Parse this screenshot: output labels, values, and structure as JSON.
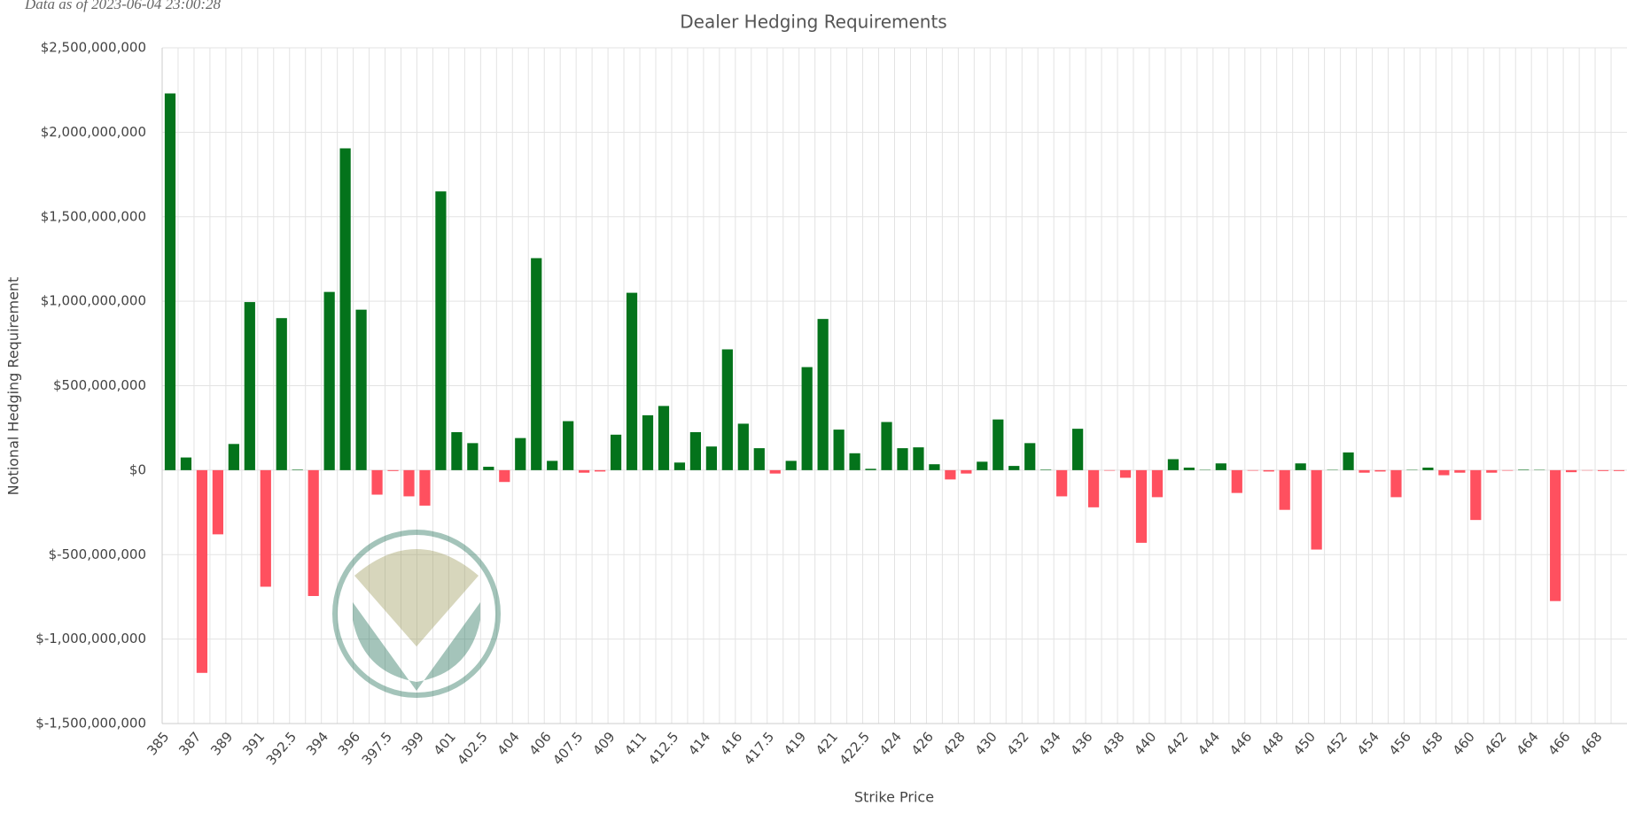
{
  "chart_data": {
    "type": "bar",
    "title": "Dealer Hedging Requirements",
    "annotation": "Data as of 2023-06-04 23:00:28",
    "x_label": "Strike Price",
    "y_label": "Notional Hedging Requirement",
    "categories": [
      385,
      null,
      387,
      null,
      389,
      null,
      391,
      null,
      392.5,
      null,
      394,
      null,
      396,
      null,
      397.5,
      null,
      399,
      null,
      401,
      null,
      402.5,
      null,
      404,
      null,
      406,
      null,
      407.5,
      null,
      409,
      null,
      411,
      null,
      412.5,
      null,
      414,
      null,
      416,
      null,
      417.5,
      null,
      419,
      null,
      421,
      null,
      422.5,
      null,
      424,
      null,
      426,
      null,
      428,
      null,
      430,
      null,
      432,
      null,
      434,
      null,
      436,
      null,
      438,
      null,
      440,
      null,
      442,
      null,
      444,
      null,
      446,
      null,
      448,
      null,
      450,
      null,
      452,
      null,
      454,
      null,
      456,
      null,
      458,
      null,
      460,
      null,
      462,
      null,
      464,
      null,
      466,
      null,
      468,
      null
    ],
    "values": [
      2230000000,
      75000000,
      -1200000000,
      -380000000,
      155000000,
      995000000,
      -690000000,
      900000000,
      3000000,
      -745000000,
      1055000000,
      1905000000,
      950000000,
      -145000000,
      -5000000,
      -155000000,
      -210000000,
      1650000000,
      225000000,
      160000000,
      20000000,
      -70000000,
      190000000,
      1255000000,
      55000000,
      290000000,
      -15000000,
      -8000000,
      210000000,
      1050000000,
      325000000,
      380000000,
      45000000,
      225000000,
      140000000,
      715000000,
      275000000,
      130000000,
      -20000000,
      55000000,
      610000000,
      895000000,
      240000000,
      100000000,
      8000000,
      285000000,
      130000000,
      135000000,
      35000000,
      -55000000,
      -20000000,
      50000000,
      300000000,
      25000000,
      160000000,
      3000000,
      -155000000,
      245000000,
      -220000000,
      -3000000,
      -45000000,
      -430000000,
      -160000000,
      65000000,
      15000000,
      2000000,
      40000000,
      -135000000,
      -3000000,
      -8000000,
      -235000000,
      40000000,
      -470000000,
      2000000,
      105000000,
      -15000000,
      -8000000,
      -160000000,
      2000000,
      15000000,
      -30000000,
      -15000000,
      -295000000,
      -15000000,
      -3000000,
      3000000,
      2000000,
      -775000000,
      -12000000,
      -2000000,
      -5000000,
      -5000000
    ],
    "positive_color": "#04731b",
    "negative_color": "#ff505f",
    "ylim": [
      -1500000000,
      2500000000
    ],
    "yticks": [
      {
        "value": -1500000000,
        "label": "$-1,500,000,000"
      },
      {
        "value": -1000000000,
        "label": "$-1,000,000,000"
      },
      {
        "value": -500000000,
        "label": "$-500,000,000"
      },
      {
        "value": 0,
        "label": "$0"
      },
      {
        "value": 500000000,
        "label": "$500,000,000"
      },
      {
        "value": 1000000000,
        "label": "$1,000,000,000"
      },
      {
        "value": 1500000000,
        "label": "$1,500,000,000"
      },
      {
        "value": 2000000000,
        "label": "$2,000,000,000"
      },
      {
        "value": 2500000000,
        "label": "$2,500,000,000"
      }
    ],
    "grid": true
  }
}
